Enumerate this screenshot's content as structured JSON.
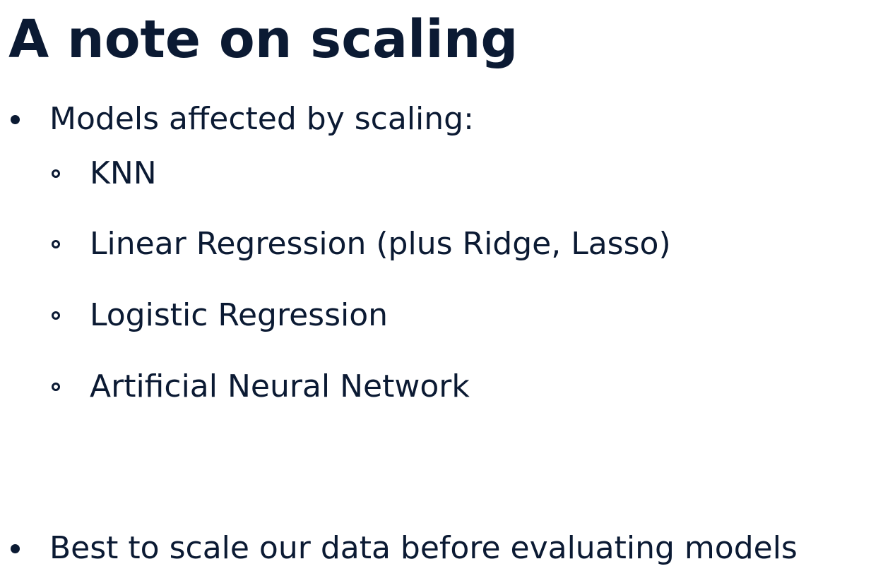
{
  "slide": {
    "title": "A note on scaling",
    "bullets": [
      {
        "text": "Models affected by scaling:",
        "sub_items": [
          "KNN",
          "Linear Regression (plus Ridge, Lasso)",
          "Logistic Regression",
          "Artificial Neural Network"
        ]
      },
      {
        "text": "Best to scale our data before evaluating models",
        "sub_items": []
      }
    ]
  },
  "colors": {
    "text": "#0b1a33",
    "background": "#ffffff"
  }
}
